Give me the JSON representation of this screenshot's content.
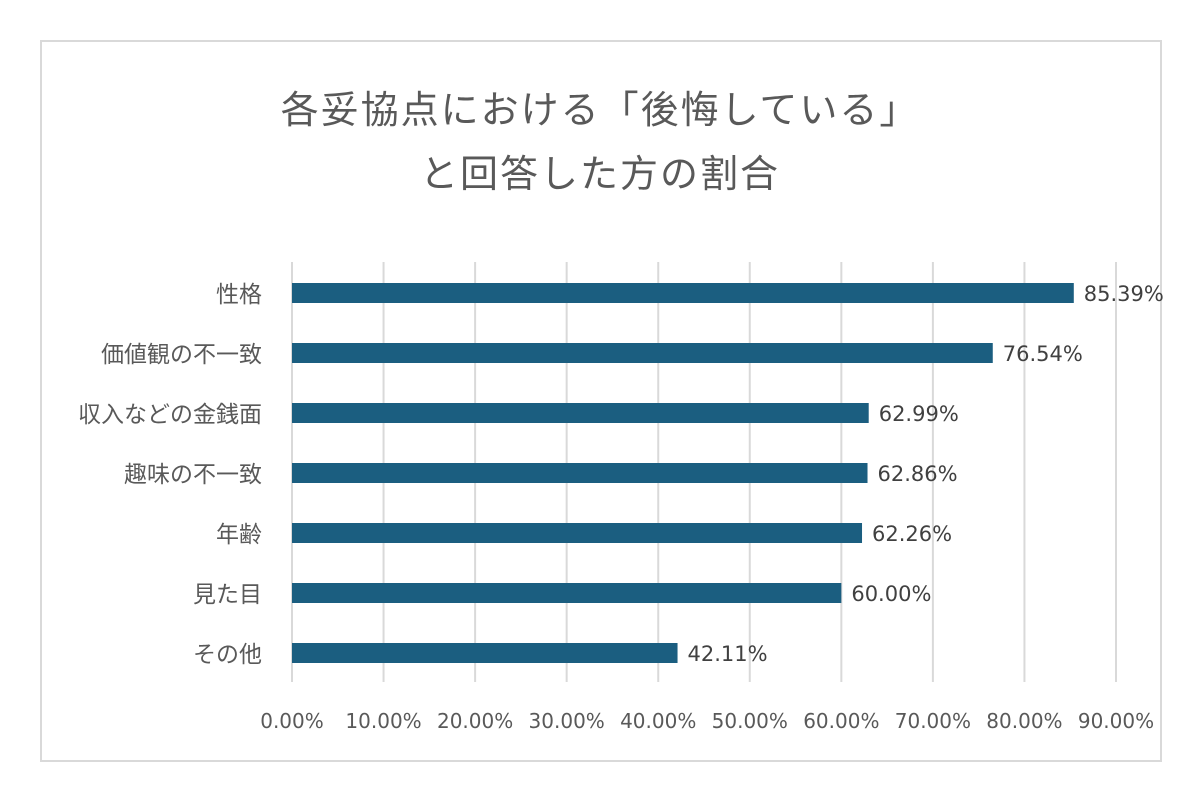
{
  "chart_data": {
    "type": "bar",
    "orientation": "horizontal",
    "title_lines": [
      "各妥協点における「後悔している」",
      "と回答した方の割合"
    ],
    "categories": [
      "性格",
      "価値観の不一致",
      "収入などの金銭面",
      "趣味の不一致",
      "年齢",
      "見た目",
      "その他"
    ],
    "values": [
      85.39,
      76.54,
      62.99,
      62.86,
      62.26,
      60.0,
      42.11
    ],
    "data_labels": [
      "85.39%",
      "76.54%",
      "62.99%",
      "62.86%",
      "62.26%",
      "60.00%",
      "42.11%"
    ],
    "xlim": [
      0,
      90
    ],
    "x_ticks": [
      0,
      10,
      20,
      30,
      40,
      50,
      60,
      70,
      80,
      90
    ],
    "x_tick_labels": [
      "0.00%",
      "10.00%",
      "20.00%",
      "30.00%",
      "40.00%",
      "50.00%",
      "60.00%",
      "70.00%",
      "80.00%",
      "90.00%"
    ],
    "grid": true,
    "legend": "none",
    "bar_color": "#1b5e80"
  }
}
